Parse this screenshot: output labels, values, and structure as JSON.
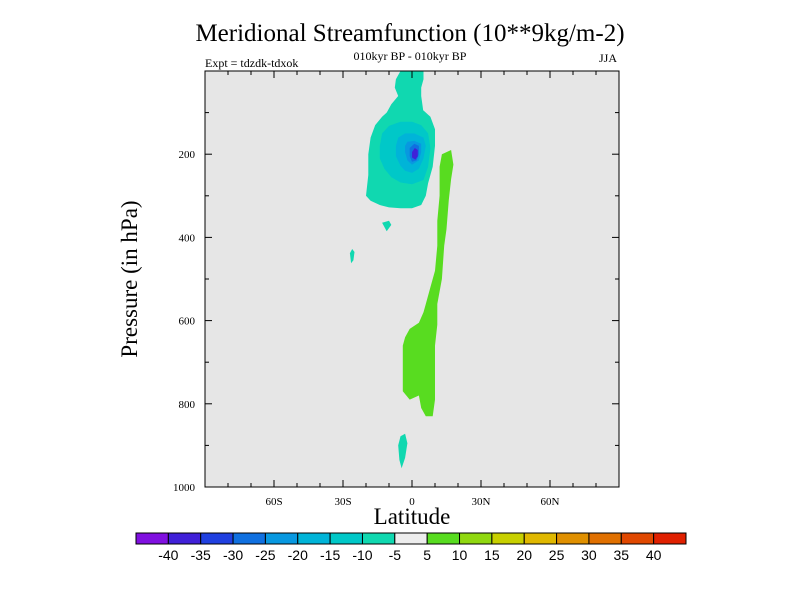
{
  "chart_data": {
    "type": "heatmap",
    "title": "Meridional Streamfunction (10**9kg/m-2)",
    "subtitle": "010kyr BP - 010kyr BP",
    "experiment": "Expt = tdzdk-tdxok",
    "season": "JJA",
    "xlabel": "Latitude",
    "ylabel": "Pressure (in hPa)",
    "xlim": [
      -90,
      90
    ],
    "ylim": [
      1000,
      0
    ],
    "x_ticks": [
      {
        "value": -60,
        "label": "60S"
      },
      {
        "value": -30,
        "label": "30S"
      },
      {
        "value": 0,
        "label": "0"
      },
      {
        "value": 30,
        "label": "30N"
      },
      {
        "value": 60,
        "label": "60N"
      }
    ],
    "y_ticks": [
      {
        "value": 200,
        "label": "200"
      },
      {
        "value": 400,
        "label": "400"
      },
      {
        "value": 600,
        "label": "600"
      },
      {
        "value": 800,
        "label": "800"
      },
      {
        "value": 1000,
        "label": "1000"
      }
    ],
    "background_color": "#e6e6e6",
    "colorbar": {
      "levels": [
        -40,
        -35,
        -30,
        -25,
        -20,
        -15,
        -10,
        -5,
        5,
        10,
        15,
        20,
        25,
        30,
        35,
        40
      ],
      "labels": [
        "-40",
        "-35",
        "-30",
        "-25",
        "-20",
        "-15",
        "-10",
        "-5",
        "5",
        "10",
        "15",
        "20",
        "25",
        "30",
        "35",
        "40"
      ],
      "colors": [
        "#8010e0",
        "#4020d8",
        "#2040e0",
        "#1070e0",
        "#0898e0",
        "#00b4d8",
        "#00c8c8",
        "#10d8b0",
        "#ededed",
        "#58dc20",
        "#90d810",
        "#c8d000",
        "#e0b800",
        "#e09000",
        "#e07000",
        "#e04800",
        "#e02000"
      ]
    },
    "regions": [
      {
        "name": "negative-cell-outer-lobe",
        "value": -10,
        "color": "#10d8b0",
        "points": [
          [
            -5,
            0
          ],
          [
            -7,
            20
          ],
          [
            -7.5,
            40
          ],
          [
            -6,
            60
          ],
          [
            -9,
            80
          ],
          [
            -11,
            100
          ],
          [
            -12,
            130
          ],
          [
            -13,
            160
          ],
          [
            -12,
            200
          ],
          [
            -11,
            240
          ],
          [
            -10,
            270
          ],
          [
            -8,
            290
          ],
          [
            -4,
            300
          ],
          [
            0,
            300
          ],
          [
            3,
            300
          ],
          [
            5,
            285
          ],
          [
            6,
            250
          ],
          [
            7,
            200
          ],
          [
            6,
            140
          ],
          [
            5,
            100
          ],
          [
            4,
            60
          ],
          [
            4,
            40
          ],
          [
            5,
            20
          ],
          [
            5,
            0
          ]
        ]
      },
      {
        "name": "negative-cell-outer",
        "value": -10,
        "color": "#10d8b0",
        "points": [
          [
            -20,
            300
          ],
          [
            -19,
            250
          ],
          [
            -19,
            200
          ],
          [
            -18,
            160
          ],
          [
            -16,
            130
          ],
          [
            -13,
            110
          ],
          [
            -10,
            95
          ],
          [
            -5,
            88
          ],
          [
            0,
            90
          ],
          [
            5,
            95
          ],
          [
            8,
            110
          ],
          [
            10,
            140
          ],
          [
            10,
            180
          ],
          [
            9,
            230
          ],
          [
            7,
            270
          ],
          [
            6,
            300
          ],
          [
            4,
            322
          ],
          [
            0,
            330
          ],
          [
            -5,
            330
          ],
          [
            -10,
            328
          ],
          [
            -14,
            322
          ],
          [
            -18,
            312
          ]
        ]
      },
      {
        "name": "negative-cell-15",
        "value": -15,
        "color": "#00c8c8",
        "points": [
          [
            -14,
            180
          ],
          [
            -13,
            150
          ],
          [
            -10,
            132
          ],
          [
            -5,
            122
          ],
          [
            0,
            122
          ],
          [
            4,
            130
          ],
          [
            7,
            150
          ],
          [
            8,
            185
          ],
          [
            7,
            230
          ],
          [
            5,
            262
          ],
          [
            0,
            272
          ],
          [
            -5,
            268
          ],
          [
            -9,
            255
          ],
          [
            -12,
            235
          ],
          [
            -14,
            210
          ]
        ]
      },
      {
        "name": "negative-cell-20",
        "value": -20,
        "color": "#00b4d8",
        "points": [
          [
            -7,
            180
          ],
          [
            -6,
            160
          ],
          [
            -3,
            150
          ],
          [
            1,
            150
          ],
          [
            5,
            160
          ],
          [
            6,
            180
          ],
          [
            5,
            210
          ],
          [
            3,
            235
          ],
          [
            0,
            245
          ],
          [
            -3,
            240
          ],
          [
            -5,
            228
          ],
          [
            -7,
            205
          ]
        ]
      },
      {
        "name": "negative-cell-25",
        "value": -25,
        "color": "#0898e0",
        "points": [
          [
            -3,
            180
          ],
          [
            -2,
            170
          ],
          [
            1,
            168
          ],
          [
            4,
            175
          ],
          [
            4,
            195
          ],
          [
            3,
            215
          ],
          [
            0,
            225
          ],
          [
            -2,
            215
          ],
          [
            -3,
            195
          ]
        ]
      },
      {
        "name": "negative-cell-30",
        "value": -30,
        "color": "#1070e0",
        "points": [
          [
            -1,
            185
          ],
          [
            1,
            175
          ],
          [
            3,
            180
          ],
          [
            3,
            200
          ],
          [
            2,
            215
          ],
          [
            0,
            218
          ],
          [
            -1,
            205
          ]
        ]
      },
      {
        "name": "negative-cell-35",
        "value": -35,
        "color": "#4020d8",
        "points": [
          [
            0,
            195
          ],
          [
            1.2,
            185
          ],
          [
            2.5,
            190
          ],
          [
            2.5,
            205
          ],
          [
            1.5,
            213
          ],
          [
            0,
            208
          ]
        ]
      },
      {
        "name": "negative-spot-upper",
        "value": -10,
        "color": "#10d8b0",
        "points": [
          [
            -13,
            365
          ],
          [
            -10,
            360
          ],
          [
            -9,
            370
          ],
          [
            -11,
            385
          ],
          [
            -12,
            375
          ]
        ]
      },
      {
        "name": "negative-spot-left",
        "value": -10,
        "color": "#10d8b0",
        "points": [
          [
            -27,
            438
          ],
          [
            -26,
            428
          ],
          [
            -25,
            435
          ],
          [
            -25.5,
            455
          ],
          [
            -26.5,
            462
          ]
        ]
      },
      {
        "name": "negative-spot-lower",
        "value": -10,
        "color": "#10d8b0",
        "points": [
          [
            -6,
            900
          ],
          [
            -5,
            878
          ],
          [
            -3,
            872
          ],
          [
            -2,
            895
          ],
          [
            -3,
            930
          ],
          [
            -4.5,
            955
          ],
          [
            -5.5,
            935
          ]
        ]
      },
      {
        "name": "positive-band",
        "value": 5,
        "color": "#58dc20",
        "points": [
          [
            12,
            230
          ],
          [
            13,
            200
          ],
          [
            17,
            190
          ],
          [
            18,
            225
          ],
          [
            17,
            260
          ],
          [
            16,
            310
          ],
          [
            15,
            380
          ],
          [
            14,
            420
          ],
          [
            13,
            500
          ],
          [
            11,
            560
          ],
          [
            11,
            610
          ],
          [
            10,
            660
          ],
          [
            10,
            720
          ],
          [
            10,
            790
          ],
          [
            9,
            830
          ],
          [
            6,
            830
          ],
          [
            4,
            810
          ],
          [
            3,
            780
          ],
          [
            -1,
            790
          ],
          [
            -4,
            770
          ],
          [
            -4,
            660
          ],
          [
            -3,
            640
          ],
          [
            -1,
            620
          ],
          [
            3,
            605
          ],
          [
            5,
            580
          ],
          [
            6,
            560
          ],
          [
            8,
            520
          ],
          [
            10,
            480
          ],
          [
            11,
            420
          ],
          [
            11,
            360
          ],
          [
            12,
            300
          ]
        ]
      }
    ]
  }
}
